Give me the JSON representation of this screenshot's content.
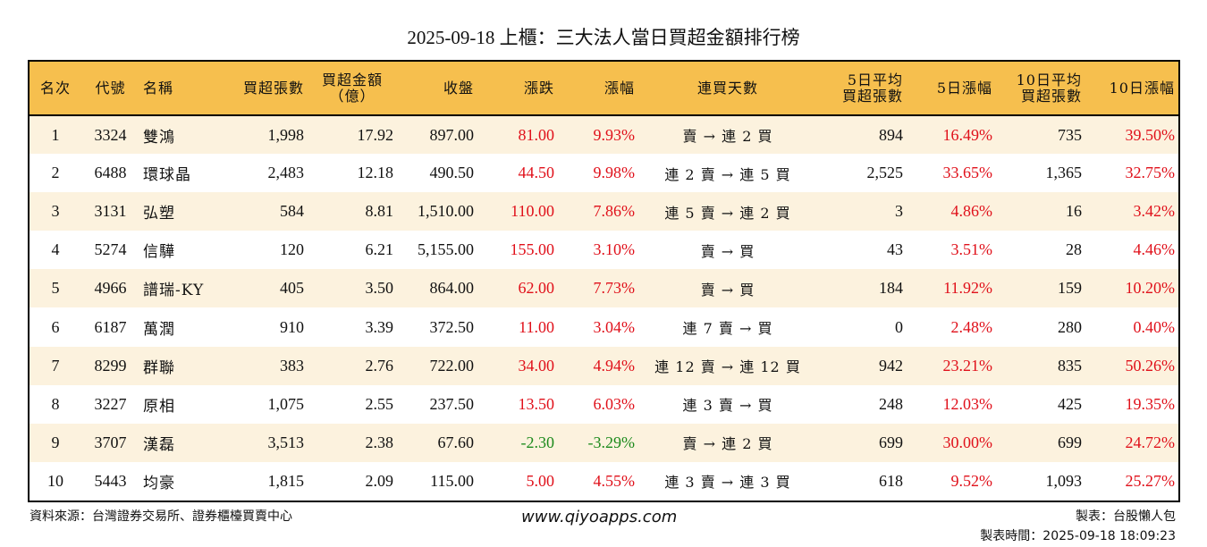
{
  "title": "2025-09-18 上櫃：三大法人當日買超金額排行榜",
  "colors": {
    "header_bg": "#f6bf4e",
    "row_alt_bg": "#fcf2de",
    "up": "#e0101a",
    "down": "#1c8a1c"
  },
  "headers": {
    "rank": "名次",
    "code": "代號",
    "name": "名稱",
    "net_buy_lots": "買超張數",
    "net_buy_amount_1": "買超金額",
    "net_buy_amount_2": "（億）",
    "close": "收盤",
    "change": "漲跌",
    "pct_change": "漲幅",
    "streak": "連買天數",
    "avg5_1": "5日平均",
    "avg5_2": "買超張數",
    "pct5": "5日漲幅",
    "avg10_1": "10日平均",
    "avg10_2": "買超張數",
    "pct10": "10日漲幅"
  },
  "rows": [
    {
      "rank": "1",
      "code": "3324",
      "name": "雙鴻",
      "lots": "1,998",
      "amount": "17.92",
      "close": "897.00",
      "change": "81.00",
      "pct": "9.93%",
      "streak": "賣 → 連 2 買",
      "avg5": "894",
      "pct5": "16.49%",
      "avg10": "735",
      "pct10": "39.50%",
      "dir": "up"
    },
    {
      "rank": "2",
      "code": "6488",
      "name": "環球晶",
      "lots": "2,483",
      "amount": "12.18",
      "close": "490.50",
      "change": "44.50",
      "pct": "9.98%",
      "streak": "連 2 賣 → 連 5 買",
      "avg5": "2,525",
      "pct5": "33.65%",
      "avg10": "1,365",
      "pct10": "32.75%",
      "dir": "up"
    },
    {
      "rank": "3",
      "code": "3131",
      "name": "弘塑",
      "lots": "584",
      "amount": "8.81",
      "close": "1,510.00",
      "change": "110.00",
      "pct": "7.86%",
      "streak": "連 5 賣 → 連 2 買",
      "avg5": "3",
      "pct5": "4.86%",
      "avg10": "16",
      "pct10": "3.42%",
      "dir": "up"
    },
    {
      "rank": "4",
      "code": "5274",
      "name": "信驊",
      "lots": "120",
      "amount": "6.21",
      "close": "5,155.00",
      "change": "155.00",
      "pct": "3.10%",
      "streak": "賣 → 買",
      "avg5": "43",
      "pct5": "3.51%",
      "avg10": "28",
      "pct10": "4.46%",
      "dir": "up"
    },
    {
      "rank": "5",
      "code": "4966",
      "name": "譜瑞-KY",
      "lots": "405",
      "amount": "3.50",
      "close": "864.00",
      "change": "62.00",
      "pct": "7.73%",
      "streak": "賣 → 買",
      "avg5": "184",
      "pct5": "11.92%",
      "avg10": "159",
      "pct10": "10.20%",
      "dir": "up"
    },
    {
      "rank": "6",
      "code": "6187",
      "name": "萬潤",
      "lots": "910",
      "amount": "3.39",
      "close": "372.50",
      "change": "11.00",
      "pct": "3.04%",
      "streak": "連 7 賣 → 買",
      "avg5": "0",
      "pct5": "2.48%",
      "avg10": "280",
      "pct10": "0.40%",
      "dir": "up"
    },
    {
      "rank": "7",
      "code": "8299",
      "name": "群聯",
      "lots": "383",
      "amount": "2.76",
      "close": "722.00",
      "change": "34.00",
      "pct": "4.94%",
      "streak": "連 12 賣 → 連 12 買",
      "avg5": "942",
      "pct5": "23.21%",
      "avg10": "835",
      "pct10": "50.26%",
      "dir": "up"
    },
    {
      "rank": "8",
      "code": "3227",
      "name": "原相",
      "lots": "1,075",
      "amount": "2.55",
      "close": "237.50",
      "change": "13.50",
      "pct": "6.03%",
      "streak": "連 3 賣 → 買",
      "avg5": "248",
      "pct5": "12.03%",
      "avg10": "425",
      "pct10": "19.35%",
      "dir": "up"
    },
    {
      "rank": "9",
      "code": "3707",
      "name": "漢磊",
      "lots": "3,513",
      "amount": "2.38",
      "close": "67.60",
      "change": "-2.30",
      "pct": "-3.29%",
      "streak": "賣 → 連 2 買",
      "avg5": "699",
      "pct5": "30.00%",
      "avg10": "699",
      "pct10": "24.72%",
      "dir": "down"
    },
    {
      "rank": "10",
      "code": "5443",
      "name": "均豪",
      "lots": "1,815",
      "amount": "2.09",
      "close": "115.00",
      "change": "5.00",
      "pct": "4.55%",
      "streak": "連 3 賣 → 連 3 買",
      "avg5": "618",
      "pct5": "9.52%",
      "avg10": "1,093",
      "pct10": "25.27%",
      "dir": "up"
    }
  ],
  "footer": {
    "source": "資料來源：台灣證券交易所、證券櫃檯買賣中心",
    "website": "www.qiyoapps.com",
    "author": "製表：台股懶人包",
    "timestamp": "製表時間：2025-09-18 18:09:23"
  }
}
